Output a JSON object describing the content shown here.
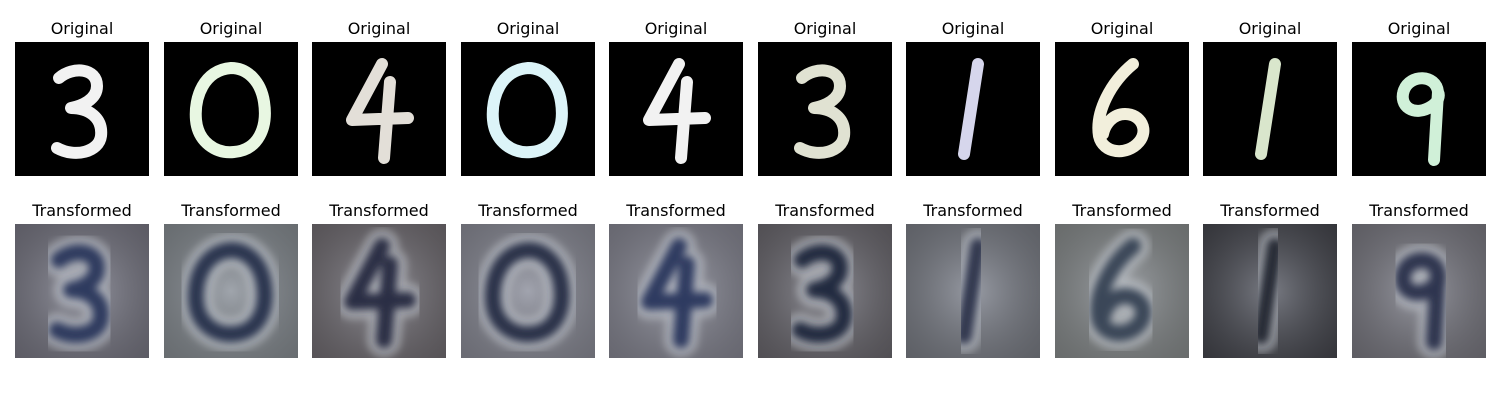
{
  "rows": [
    {
      "row_label": "Original",
      "kind": "mnist",
      "items": [
        {
          "title": "Original",
          "digit": "3",
          "ink": "#f2f2f2"
        },
        {
          "title": "Original",
          "digit": "0",
          "ink": "#e8f7e2"
        },
        {
          "title": "Original",
          "digit": "4",
          "ink": "#e3dfd8"
        },
        {
          "title": "Original",
          "digit": "0",
          "ink": "#dcf4f8"
        },
        {
          "title": "Original",
          "digit": "4",
          "ink": "#f2f2f2"
        },
        {
          "title": "Original",
          "digit": "3",
          "ink": "#e0e2d2"
        },
        {
          "title": "Original",
          "digit": "1",
          "ink": "#d6d6ec"
        },
        {
          "title": "Original",
          "digit": "6",
          "ink": "#f2efdc"
        },
        {
          "title": "Original",
          "digit": "1",
          "ink": "#d9e6cc"
        },
        {
          "title": "Original",
          "digit": "9",
          "ink": "#d0f0d8"
        }
      ]
    },
    {
      "row_label": "Transformed",
      "kind": "svhn",
      "items": [
        {
          "title": "Transformed",
          "digit": "3",
          "bg": "#7b7a86",
          "ink": "#2f3a5e"
        },
        {
          "title": "Transformed",
          "digit": "0",
          "bg": "#8b9196",
          "ink": "#2c3550"
        },
        {
          "title": "Transformed",
          "digit": "4",
          "bg": "#746f74",
          "ink": "#2a2f45"
        },
        {
          "title": "Transformed",
          "digit": "0",
          "bg": "#8e8f9a",
          "ink": "#2b3048"
        },
        {
          "title": "Transformed",
          "digit": "4",
          "bg": "#8a8a96",
          "ink": "#2e3a60"
        },
        {
          "title": "Transformed",
          "digit": "3",
          "bg": "#6d6a70",
          "ink": "#242a40"
        },
        {
          "title": "Transformed",
          "digit": "1",
          "bg": "#7d8088",
          "ink": "#303850"
        },
        {
          "title": "Transformed",
          "digit": "6",
          "bg": "#8c9090",
          "ink": "#3a4658"
        },
        {
          "title": "Transformed",
          "digit": "1",
          "bg": "#46474e",
          "ink": "#262a36"
        },
        {
          "title": "Transformed",
          "digit": "9",
          "bg": "#7d7c84",
          "ink": "#2d3550"
        }
      ]
    }
  ]
}
